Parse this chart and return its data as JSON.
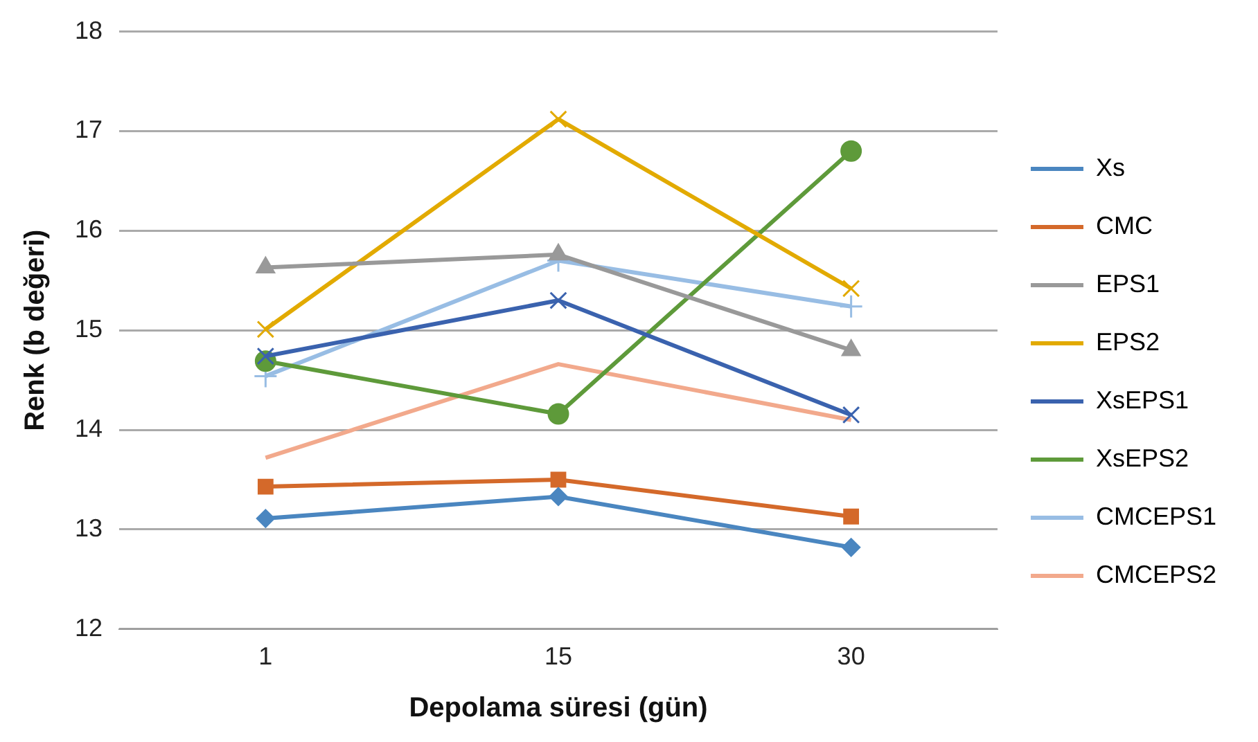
{
  "chart_data": {
    "type": "line",
    "xlabel": "Depolama süresi (gün)",
    "ylabel": "Renk (b değeri)",
    "categories": [
      "1",
      "15",
      "30"
    ],
    "series": [
      {
        "name": "Xs",
        "color": "#4a86c0",
        "marker": "diamond",
        "values": [
          13.11,
          13.33,
          12.82
        ]
      },
      {
        "name": "CMC",
        "color": "#d4692a",
        "marker": "square",
        "values": [
          13.43,
          13.5,
          13.13
        ]
      },
      {
        "name": "EPS1",
        "color": "#999999",
        "marker": "triangle",
        "values": [
          15.63,
          15.76,
          14.8
        ]
      },
      {
        "name": "EPS2",
        "color": "#e2aa00",
        "marker": "cross",
        "values": [
          15.01,
          17.12,
          15.42
        ]
      },
      {
        "name": "XsEPS1",
        "color": "#3a62ae",
        "marker": "cross",
        "values": [
          14.74,
          15.3,
          14.15
        ]
      },
      {
        "name": "XsEPS2",
        "color": "#5e9a3a",
        "marker": "circle",
        "values": [
          14.69,
          14.16,
          16.8
        ]
      },
      {
        "name": "CMCEPS1",
        "color": "#98bde4",
        "marker": "plus",
        "values": [
          14.54,
          15.7,
          15.24
        ]
      },
      {
        "name": "CMCEPS2",
        "color": "#f2a98c",
        "marker": "none",
        "values": [
          13.72,
          14.66,
          14.1
        ]
      }
    ],
    "ylim": [
      12,
      18
    ],
    "yticks": [
      12,
      13,
      14,
      15,
      16,
      17,
      18
    ],
    "grid": "y",
    "legend": "right"
  }
}
